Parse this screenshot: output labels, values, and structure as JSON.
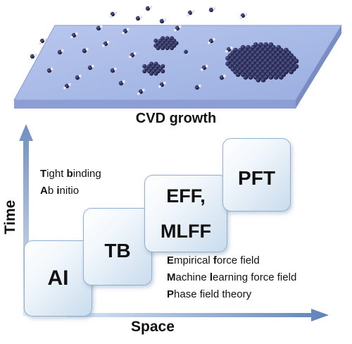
{
  "caption": "CVD growth",
  "axes": {
    "y_label": "Time",
    "x_label": "Space"
  },
  "steps": [
    {
      "id": "ai",
      "lines": [
        "AI"
      ]
    },
    {
      "id": "tb",
      "lines": [
        "TB"
      ]
    },
    {
      "id": "eff",
      "lines": [
        "EFF,",
        "MLFF"
      ]
    },
    {
      "id": "pft",
      "lines": [
        "PFT"
      ]
    }
  ],
  "legend_left": [
    {
      "initial": "T",
      "rest": "ight ",
      "initial2": "b",
      "rest2": "inding"
    },
    {
      "initial": "A",
      "rest": "b ",
      "initial2": "i",
      "rest2": "nitio"
    }
  ],
  "legend_right": [
    {
      "initial": "E",
      "rest": "mpirical ",
      "initial2": "f",
      "rest2": "orce field"
    },
    {
      "initial": "M",
      "rest": "achine ",
      "initial2": "l",
      "rest2": "earning force field"
    },
    {
      "initial": "P",
      "rest": "hase field theory",
      "initial2": "",
      "rest2": ""
    }
  ],
  "colors": {
    "plane_top": "#a9b9e6",
    "plane_side": "#7f93c9",
    "atom_dark": "#1a1a3a",
    "arrow": "#6f8fc0"
  }
}
